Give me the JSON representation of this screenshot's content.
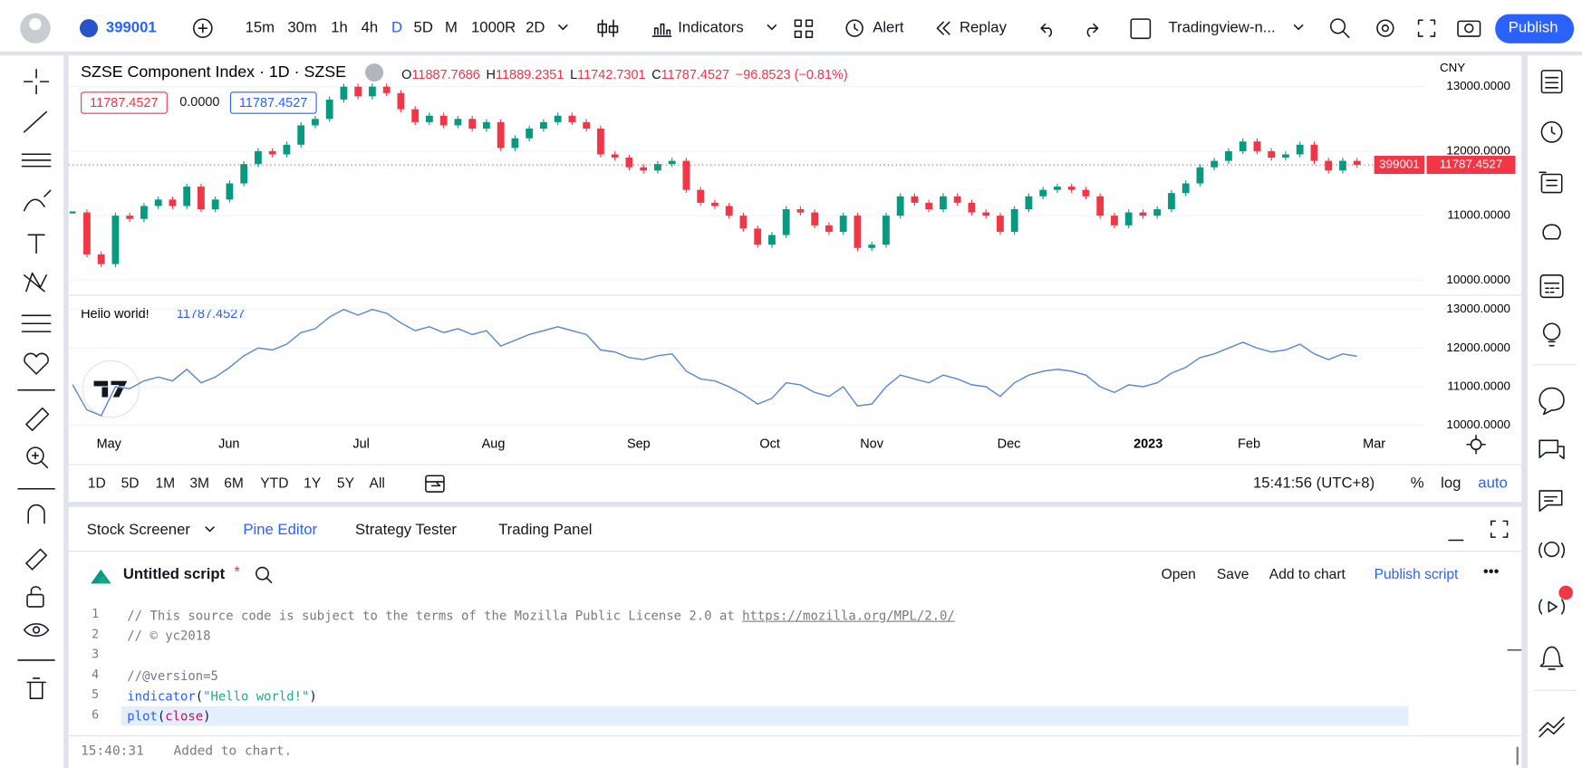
{
  "toolbar": {
    "symbol": "399001",
    "intervals": [
      "15m",
      "30m",
      "1h",
      "4h",
      "D",
      "5D",
      "M",
      "1000R",
      "2D"
    ],
    "active_interval": "D",
    "indicators": "Indicators",
    "alert": "Alert",
    "replay": "Replay",
    "layout": "Tradingview-n...",
    "publish": "Publish"
  },
  "chart_data": {
    "type": "candlestick",
    "title": "SZSE Component Index · 1D · SZSE",
    "ohlc": [
      {
        "key": "O",
        "value": "11887.7686"
      },
      {
        "key": "H",
        "value": "11889.2351"
      },
      {
        "key": "L",
        "value": "11742.7301"
      },
      {
        "key": "C",
        "value": "11787.4527"
      }
    ],
    "change": "−96.8523 (−0.81%)",
    "price_boxes": [
      "11787.4527",
      "0.0000",
      "11787.4527"
    ],
    "currency": "CNY",
    "symbol_tag": "399001",
    "last_label": "11787.4527",
    "months": [
      "May",
      "Jun",
      "Jul",
      "Aug",
      "Sep",
      "Oct",
      "Nov",
      "Dec",
      "2023",
      "Feb",
      "Mar"
    ],
    "values": [
      11050,
      10400,
      10250,
      11000,
      10950,
      11150,
      11250,
      11150,
      11450,
      11100,
      11250,
      11500,
      11800,
      12000,
      11950,
      12100,
      12400,
      12500,
      12800,
      13000,
      12850,
      13000,
      12900,
      12650,
      12450,
      12550,
      12400,
      12500,
      12350,
      12450,
      12050,
      12200,
      12350,
      12450,
      12550,
      12450,
      12350,
      11950,
      11900,
      11750,
      11700,
      11800,
      11850,
      11400,
      11200,
      11150,
      11000,
      10800,
      10550,
      10700,
      11100,
      11050,
      10850,
      10750,
      11000,
      10500,
      10550,
      11000,
      11300,
      11200,
      11100,
      11300,
      11200,
      11050,
      11000,
      10750,
      11100,
      11300,
      11400,
      11450,
      11400,
      11300,
      11000,
      10850,
      11050,
      11000,
      11100,
      11350,
      11500,
      11750,
      11850,
      12000,
      12150,
      12000,
      11900,
      11950,
      12100,
      11850,
      11700,
      11850,
      11787.4527
    ],
    "ylim": [
      9781,
      13406
    ],
    "yticks": [
      {
        "value": 13000,
        "label": "13000.0000"
      },
      {
        "value": 12000,
        "label": "12000.0000"
      },
      {
        "value": 11000,
        "label": "11000.0000"
      },
      {
        "value": 10000,
        "label": "10000.0000"
      }
    ],
    "grid": true,
    "color_up": "#089981",
    "color_down": "#f23645"
  },
  "indicator": {
    "type": "line",
    "name": "Hello world!",
    "value_label": "11787.4527",
    "color": "#5b8ad9",
    "ylim": [
      9792,
      13312
    ],
    "yticks": [
      {
        "value": 13000,
        "label": "13000.0000"
      },
      {
        "value": 12000,
        "label": "12000.0000"
      },
      {
        "value": 11000,
        "label": "11000.0000"
      },
      {
        "value": 10000,
        "label": "10000.0000"
      }
    ]
  },
  "range_bar": {
    "ranges": [
      "1D",
      "5D",
      "1M",
      "3M",
      "6M",
      "YTD",
      "1Y",
      "5Y",
      "All"
    ],
    "clock": "15:41:56 (UTC+8)",
    "percent": "%",
    "log": "log",
    "auto": "auto"
  },
  "panel": {
    "tabs": [
      "Stock Screener",
      "Pine Editor",
      "Strategy Tester",
      "Trading Panel"
    ],
    "active_tab": "Pine Editor",
    "script": "Untitled script",
    "modified": "*",
    "actions": [
      "Open",
      "Save",
      "Add to chart",
      "Publish script"
    ],
    "code": [
      {
        "n": 1,
        "tokens": [
          {
            "t": "// This source code is subject to the terms of the Mozilla Public License 2.0 at ",
            "k": "comment"
          },
          {
            "t": "https://mozilla.org/MPL/2.0/",
            "k": "link"
          }
        ]
      },
      {
        "n": 2,
        "tokens": [
          {
            "t": "// © yc2018",
            "k": "comment"
          }
        ]
      },
      {
        "n": 3,
        "tokens": []
      },
      {
        "n": 4,
        "tokens": [
          {
            "t": "//@version=5",
            "k": "comment"
          }
        ]
      },
      {
        "n": 5,
        "tokens": [
          {
            "t": "indicator",
            "k": "func"
          },
          {
            "t": "(",
            "k": "plain"
          },
          {
            "t": "\"Hello world!\"",
            "k": "string"
          },
          {
            "t": ")",
            "k": "plain"
          }
        ]
      },
      {
        "n": 6,
        "tokens": [
          {
            "t": "plot",
            "k": "func"
          },
          {
            "t": "(",
            "k": "plain"
          },
          {
            "t": "close",
            "k": "var"
          },
          {
            "t": ")",
            "k": "plain"
          }
        ]
      }
    ],
    "console": {
      "time": "15:40:31",
      "message": "Added to chart."
    }
  }
}
